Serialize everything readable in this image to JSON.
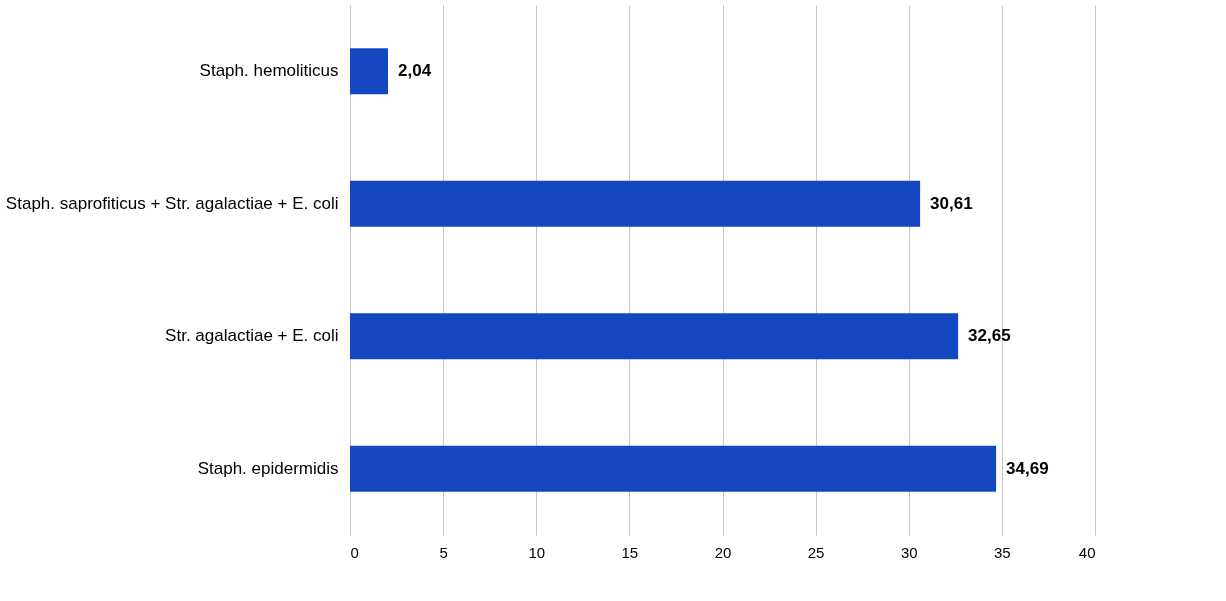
{
  "chart_data": {
    "type": "bar",
    "orientation": "horizontal",
    "categories": [
      "Staph. hemoliticus",
      "Staph. saprofiticus + Str. agalactiae + E. coli",
      "Str. agalactiae + E. coli",
      "Staph. epidermidis"
    ],
    "values": [
      2.04,
      30.61,
      32.65,
      34.69
    ],
    "value_labels": [
      "2,04",
      "30,61",
      "32,65",
      "34,69"
    ],
    "color": "#1547c0",
    "xlim": [
      0,
      40
    ],
    "xticks": [
      0,
      5,
      10,
      15,
      20,
      25,
      30,
      35,
      40
    ],
    "grid": "x"
  }
}
